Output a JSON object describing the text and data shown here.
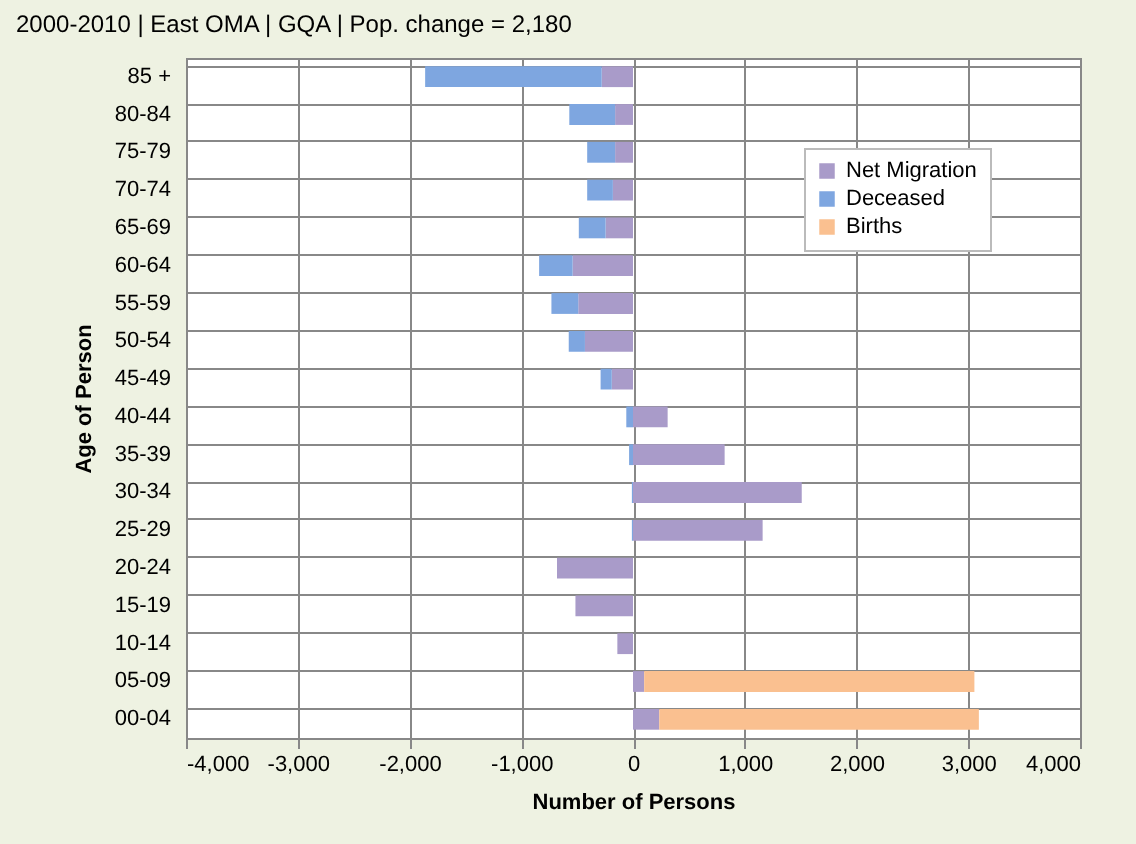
{
  "chart_data": {
    "type": "bar",
    "orientation": "horizontal",
    "stacked": true,
    "title": "2000-2010 |   East OMA  |  GQA   |   Pop. change  = 2,180",
    "xlabel": "Number of Persons",
    "ylabel": "Age of Person",
    "categories": [
      "85 +",
      "80-84",
      "75-79",
      "70-74",
      "65-69",
      "60-64",
      "55-59",
      "50-54",
      "45-49",
      "40-44",
      "35-39",
      "30-34",
      "25-29",
      "20-24",
      "15-19",
      "10-14",
      "05-09",
      "00-04"
    ],
    "series": [
      {
        "name": "Net Migration",
        "color": "#a99bc9",
        "values": [
          -280,
          -160,
          -160,
          -180,
          -245,
          -540,
          -490,
          -430,
          -190,
          310,
          820,
          1510,
          1160,
          -680,
          -515,
          -140,
          100,
          235
        ]
      },
      {
        "name": "Deceased",
        "color": "#7ea6e0",
        "values": [
          -1580,
          -410,
          -250,
          -230,
          -240,
          -300,
          -240,
          -145,
          -100,
          -60,
          -35,
          -10,
          -10,
          0,
          0,
          0,
          0,
          0
        ]
      },
      {
        "name": "Births",
        "color": "#fac090",
        "values": [
          0,
          0,
          0,
          0,
          0,
          0,
          0,
          0,
          0,
          0,
          0,
          0,
          0,
          0,
          0,
          0,
          2955,
          2860
        ]
      }
    ],
    "xlim": [
      -4000,
      4000
    ],
    "xticks": [
      {
        "value": -4000,
        "label": "-4,000"
      },
      {
        "value": -3000,
        "label": "-3,000"
      },
      {
        "value": -2000,
        "label": "-2,000"
      },
      {
        "value": -1000,
        "label": "-1,000"
      },
      0,
      {
        "value": 1000,
        "label": "1,000"
      },
      {
        "value": 2000,
        "label": "2,000"
      },
      {
        "value": 3000,
        "label": "3,000"
      },
      {
        "value": 4000,
        "label": "4,000"
      }
    ],
    "grid": true,
    "legend": "top right"
  }
}
